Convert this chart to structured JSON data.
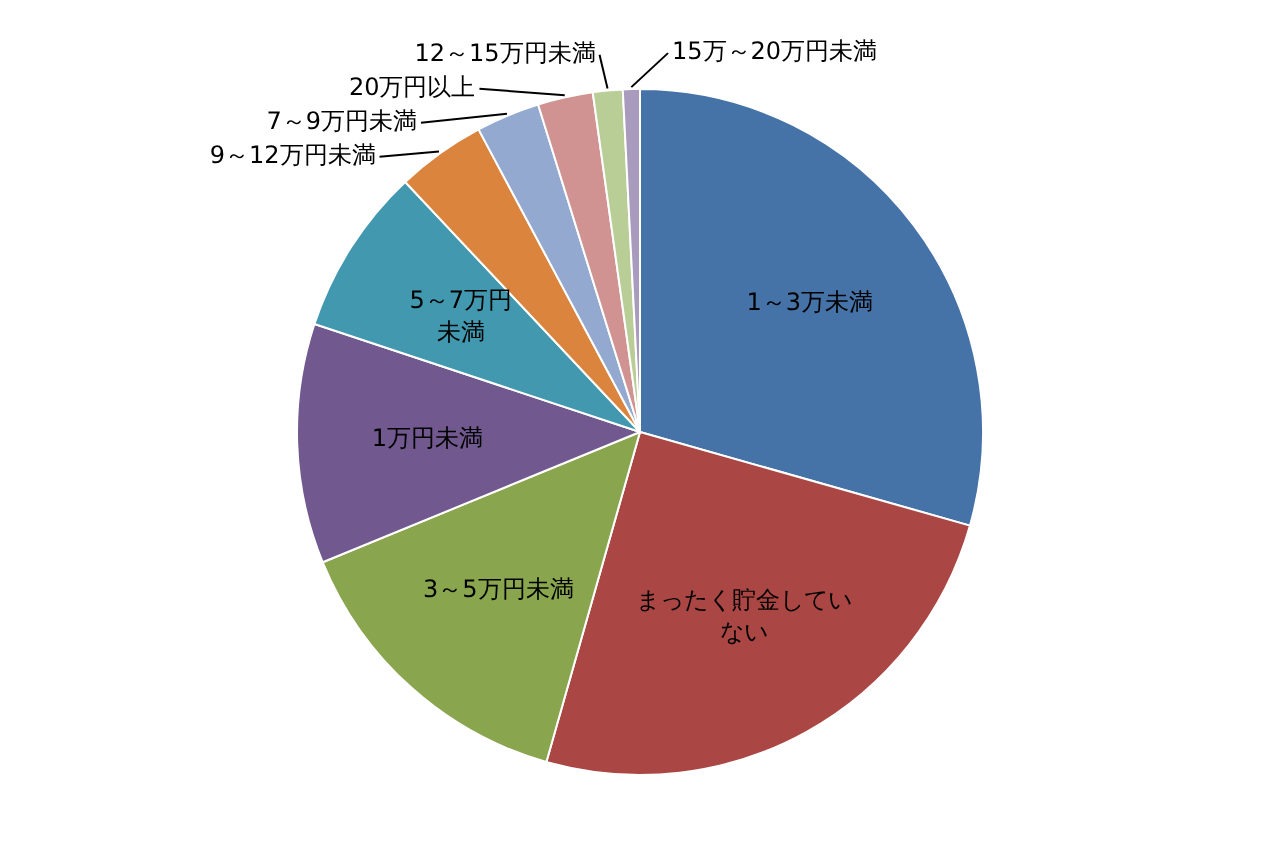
{
  "chart_data": {
    "type": "pie",
    "categories": [
      "1～3万未満",
      "まったく貯金していない",
      "3～5万円未満",
      "1万円未満",
      "5～7万円未満",
      "9～12万円未満",
      "7～9万円未満",
      "20万円以上",
      "12～15万円未満",
      "15万～20万円未満"
    ],
    "values": [
      29.4,
      25,
      14.4,
      11.3,
      7.9,
      4.2,
      3,
      2.6,
      1.4,
      0.8
    ],
    "colors": [
      "#4572a7",
      "#aa4643",
      "#89a54e",
      "#71588f",
      "#4198af",
      "#db843d",
      "#93a9cf",
      "#d19392",
      "#b9cd96",
      "#a99bbd"
    ],
    "legend": false
  }
}
